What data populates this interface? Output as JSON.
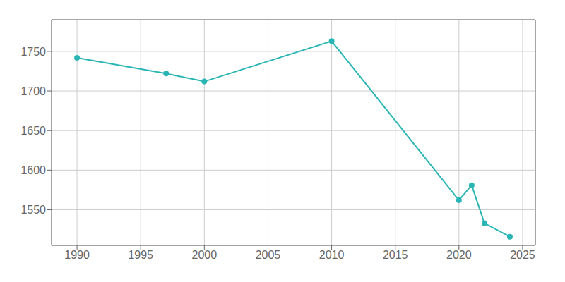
{
  "chart_data": {
    "type": "line",
    "x": [
      1990,
      1997,
      2000,
      2010,
      2020,
      2021,
      2022,
      2024
    ],
    "values": [
      1742,
      1722,
      1712,
      1763,
      1562,
      1581,
      1533,
      1516
    ],
    "color": "#2ab5b5",
    "marker": "circle",
    "xlim": [
      1988,
      2026
    ],
    "ylim": [
      1505,
      1790
    ],
    "xticks": [
      1990,
      1995,
      2000,
      2005,
      2010,
      2015,
      2020,
      2025
    ],
    "yticks": [
      1550,
      1600,
      1650,
      1700,
      1750
    ],
    "grid": true
  }
}
